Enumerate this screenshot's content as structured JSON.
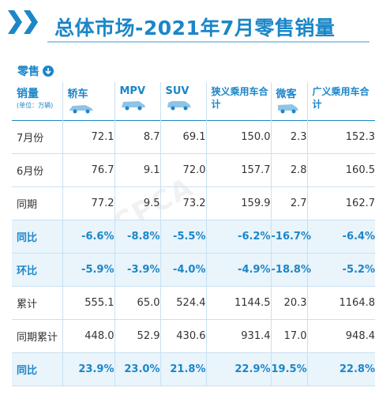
{
  "title": "总体市场-2021年7月零售销量",
  "section": {
    "label": "零售",
    "icon": "arrow-down-circle-icon"
  },
  "watermark": "CPCA",
  "table": {
    "unit_header": {
      "main": "销量",
      "sub": "(单位：万辆)"
    },
    "columns": [
      {
        "name": "轿车",
        "icon": "sedan-icon"
      },
      {
        "name": "MPV",
        "icon": "mpv-icon"
      },
      {
        "name": "SUV",
        "icon": "suv-icon"
      },
      {
        "name": "狭义乘用车合计",
        "icon": ""
      },
      {
        "name": "微客",
        "icon": "microbus-icon"
      },
      {
        "name": "广义乘用车合计",
        "icon": ""
      }
    ],
    "rows": [
      {
        "label": "7月份",
        "values": [
          "72.1",
          "8.7",
          "69.1",
          "150.0",
          "2.3",
          "152.3"
        ],
        "highlight": false
      },
      {
        "label": "6月份",
        "values": [
          "76.7",
          "9.1",
          "72.0",
          "157.7",
          "2.8",
          "160.5"
        ],
        "highlight": false
      },
      {
        "label": "同期",
        "values": [
          "77.2",
          "9.5",
          "73.2",
          "159.9",
          "2.7",
          "162.7"
        ],
        "highlight": false
      },
      {
        "label": "同比",
        "values": [
          "-6.6%",
          "-8.8%",
          "-5.5%",
          "-6.2%",
          "-16.7%",
          "-6.4%"
        ],
        "highlight": true
      },
      {
        "label": "环比",
        "values": [
          "-5.9%",
          "-3.9%",
          "-4.0%",
          "-4.9%",
          "-18.8%",
          "-5.2%"
        ],
        "highlight": true
      },
      {
        "label": "累计",
        "values": [
          "555.1",
          "65.0",
          "524.4",
          "1144.5",
          "20.3",
          "1164.8"
        ],
        "highlight": false
      },
      {
        "label": "同期累计",
        "values": [
          "448.0",
          "52.9",
          "430.6",
          "931.4",
          "17.0",
          "948.4"
        ],
        "highlight": false
      },
      {
        "label": "同比",
        "values": [
          "23.9%",
          "23.0%",
          "21.8%",
          "22.9%",
          "19.5%",
          "22.8%"
        ],
        "highlight": true
      }
    ]
  },
  "colors": {
    "accent": "#1b86c8",
    "highlight_row": "#e9f4fb",
    "grid": "#c9e1f1"
  }
}
